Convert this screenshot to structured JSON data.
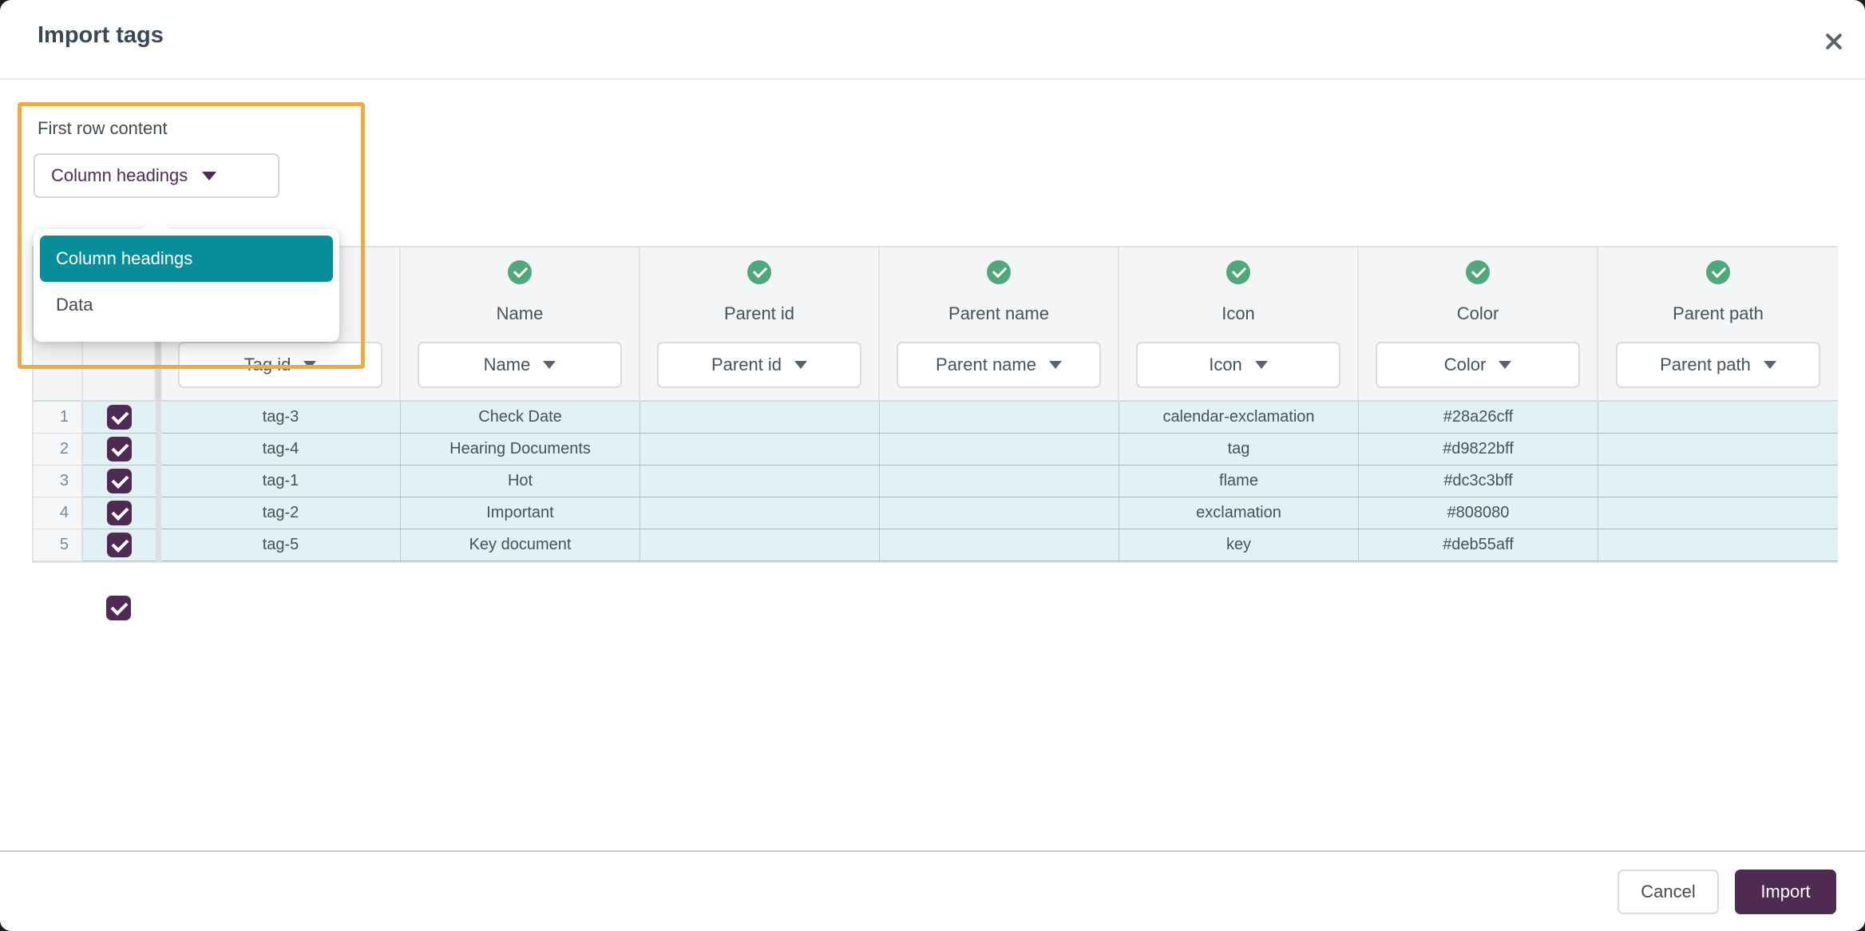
{
  "dialog": {
    "title": "Import tags"
  },
  "first_row_content": {
    "label": "First row content",
    "selected": "Column headings",
    "options": [
      {
        "label": "Column headings",
        "selected": true
      },
      {
        "label": "Data",
        "selected": false
      }
    ]
  },
  "table": {
    "select_all_checked": true,
    "columns": [
      {
        "title": "Tag id",
        "select_value": "Tag id",
        "mapped": true
      },
      {
        "title": "Name",
        "select_value": "Name",
        "mapped": true
      },
      {
        "title": "Parent id",
        "select_value": "Parent id",
        "mapped": true
      },
      {
        "title": "Parent name",
        "select_value": "Parent name",
        "mapped": true
      },
      {
        "title": "Icon",
        "select_value": "Icon",
        "mapped": true
      },
      {
        "title": "Color",
        "select_value": "Color",
        "mapped": true
      },
      {
        "title": "Parent path",
        "select_value": "Parent path",
        "mapped": true
      }
    ],
    "rows": [
      {
        "num": "1",
        "checked": true,
        "cells": [
          "tag-3",
          "Check Date",
          "",
          "",
          "calendar-exclamation",
          "#28a26cff",
          ""
        ]
      },
      {
        "num": "2",
        "checked": true,
        "cells": [
          "tag-4",
          "Hearing Documents",
          "",
          "",
          "tag",
          "#d9822bff",
          ""
        ]
      },
      {
        "num": "3",
        "checked": true,
        "cells": [
          "tag-1",
          "Hot",
          "",
          "",
          "flame",
          "#dc3c3bff",
          ""
        ]
      },
      {
        "num": "4",
        "checked": true,
        "cells": [
          "tag-2",
          "Important",
          "",
          "",
          "exclamation",
          "#808080",
          ""
        ]
      },
      {
        "num": "5",
        "checked": true,
        "cells": [
          "tag-5",
          "Key document",
          "",
          "",
          "key",
          "#deb55aff",
          ""
        ]
      }
    ]
  },
  "footer": {
    "cancel_label": "Cancel",
    "import_label": "Import"
  },
  "colors": {
    "teal": "#088e9a",
    "plum": "#4f2a52",
    "orange": "#ecab43",
    "green": "#4ea87b"
  }
}
